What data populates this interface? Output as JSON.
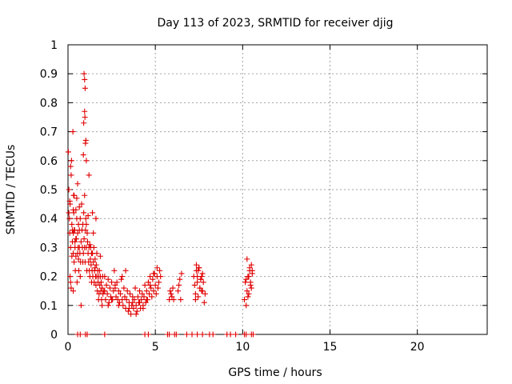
{
  "chart_data": {
    "type": "scatter",
    "title": "Day 113 of 2023, SRMTID for receiver djig",
    "xlabel": "GPS time / hours",
    "ylabel": "SRMTID / TECUs",
    "xlim": [
      0,
      24
    ],
    "ylim": [
      0,
      1
    ],
    "xticks": [
      0,
      5,
      10,
      15,
      20
    ],
    "xtick_labels": [
      "0",
      "5",
      "10",
      "15",
      "20"
    ],
    "yticks": [
      0,
      0.1,
      0.2,
      0.3,
      0.4,
      0.5,
      0.6,
      0.7,
      0.8,
      0.9,
      1
    ],
    "ytick_labels": [
      "0",
      "0.1",
      "0.2",
      "0.3",
      "0.4",
      "0.5",
      "0.6",
      "0.7",
      "0.8",
      "0.9",
      "1"
    ],
    "grid": true,
    "marker": "+",
    "color": "#e00000",
    "series": [
      {
        "name": "SRMTID",
        "x": [
          0.02,
          0.05,
          0.08,
          0.1,
          0.12,
          0.15,
          0.18,
          0.2,
          0.22,
          0.25,
          0.28,
          0.3,
          0.33,
          0.35,
          0.38,
          0.4,
          0.42,
          0.45,
          0.48,
          0.5,
          0.52,
          0.55,
          0.58,
          0.6,
          0.62,
          0.65,
          0.68,
          0.7,
          0.72,
          0.75,
          0.78,
          0.8,
          0.82,
          0.85,
          0.88,
          0.9,
          0.92,
          0.95,
          0.98,
          1.0,
          1.02,
          1.05,
          1.08,
          1.1,
          1.12,
          1.15,
          1.18,
          1.2,
          1.22,
          1.25,
          1.28,
          1.3,
          1.32,
          1.35,
          1.38,
          1.4,
          1.42,
          1.45,
          1.48,
          1.5,
          1.52,
          1.55,
          1.58,
          1.6,
          1.62,
          1.65,
          1.68,
          1.7,
          1.72,
          1.75,
          1.78,
          1.8,
          1.82,
          1.85,
          1.88,
          1.9,
          1.92,
          1.95,
          1.98,
          2.0,
          2.05,
          2.1,
          2.15,
          2.2,
          2.25,
          2.3,
          2.35,
          2.4,
          2.45,
          2.5,
          2.55,
          2.6,
          2.65,
          2.7,
          2.75,
          2.8,
          2.85,
          2.9,
          2.95,
          3.0,
          3.05,
          3.1,
          3.15,
          3.2,
          3.25,
          3.3,
          3.35,
          3.4,
          3.45,
          3.5,
          3.55,
          3.6,
          3.65,
          3.7,
          3.75,
          3.8,
          3.85,
          3.9,
          3.95,
          4.0,
          4.05,
          4.1,
          4.15,
          4.2,
          4.25,
          4.3,
          4.35,
          4.4,
          4.45,
          4.5,
          4.55,
          4.6,
          4.65,
          4.7,
          4.75,
          4.8,
          4.85,
          4.9,
          4.95,
          5.0,
          5.05,
          5.1,
          5.15,
          5.2,
          5.25,
          5.3,
          0.05,
          0.1,
          0.15,
          0.22,
          0.3,
          0.35,
          0.45,
          0.55,
          0.65,
          0.75,
          0.85,
          0.95,
          1.05,
          1.15,
          1.25,
          1.35,
          1.45,
          1.55,
          1.65,
          1.75,
          1.85,
          1.95,
          2.1,
          2.3,
          2.5,
          2.7,
          2.9,
          3.1,
          3.3,
          3.5,
          3.7,
          3.9,
          4.1,
          4.3,
          4.5,
          4.7,
          4.9,
          5.1,
          0.92,
          0.95,
          0.98,
          1.0,
          0.95,
          0.97,
          1.02,
          0.9,
          0.88,
          1.05,
          0.3,
          0.32,
          0.35,
          0.12,
          0.15,
          0.18,
          0.6,
          0.65,
          0.7,
          0.5,
          0.4,
          0.3,
          1.2,
          1.4,
          1.6,
          0.45,
          0.55,
          0.25,
          5.8,
          5.85,
          5.9,
          5.95,
          6.0,
          6.05,
          6.3,
          6.35,
          6.4,
          6.45,
          6.5,
          7.2,
          7.25,
          7.3,
          7.35,
          7.4,
          7.45,
          7.5,
          7.55,
          7.6,
          7.65,
          7.7,
          7.75,
          7.8,
          7.85,
          7.3,
          7.4,
          7.5,
          7.6,
          7.7,
          7.35,
          7.45,
          7.55,
          7.65,
          10.1,
          10.15,
          10.2,
          10.25,
          10.3,
          10.35,
          10.4,
          10.45,
          10.5,
          10.55,
          10.2,
          10.3,
          10.4,
          10.5,
          10.35,
          10.45,
          10.25,
          10.55,
          0.55,
          0.7,
          1.0,
          1.1,
          2.1,
          4.4,
          4.6,
          5.7,
          5.8,
          6.1,
          6.2,
          6.8,
          7.1,
          7.4,
          7.7,
          8.1,
          8.3,
          9.1,
          9.3,
          9.6,
          10.1,
          10.2,
          10.5,
          10.6
        ],
        "y": [
          0.63,
          0.5,
          0.4,
          0.35,
          0.45,
          0.3,
          0.55,
          0.6,
          0.38,
          0.32,
          0.7,
          0.28,
          0.42,
          0.25,
          0.36,
          0.3,
          0.22,
          0.27,
          0.33,
          0.4,
          0.18,
          0.35,
          0.3,
          0.26,
          0.22,
          0.3,
          0.28,
          0.2,
          0.25,
          0.32,
          0.45,
          0.36,
          0.3,
          0.38,
          0.28,
          0.42,
          0.33,
          0.3,
          0.25,
          0.36,
          0.4,
          0.3,
          0.22,
          0.35,
          0.32,
          0.28,
          0.25,
          0.3,
          0.22,
          0.2,
          0.26,
          0.3,
          0.24,
          0.18,
          0.22,
          0.28,
          0.2,
          0.25,
          0.3,
          0.18,
          0.22,
          0.26,
          0.2,
          0.17,
          0.24,
          0.2,
          0.15,
          0.22,
          0.18,
          0.2,
          0.14,
          0.22,
          0.17,
          0.2,
          0.15,
          0.18,
          0.12,
          0.16,
          0.2,
          0.14,
          0.15,
          0.2,
          0.12,
          0.17,
          0.14,
          0.19,
          0.11,
          0.16,
          0.13,
          0.18,
          0.12,
          0.15,
          0.22,
          0.17,
          0.13,
          0.18,
          0.12,
          0.15,
          0.11,
          0.14,
          0.19,
          0.12,
          0.1,
          0.16,
          0.13,
          0.09,
          0.12,
          0.15,
          0.08,
          0.11,
          0.14,
          0.07,
          0.1,
          0.13,
          0.09,
          0.12,
          0.16,
          0.1,
          0.08,
          0.13,
          0.11,
          0.15,
          0.09,
          0.12,
          0.14,
          0.1,
          0.13,
          0.17,
          0.11,
          0.15,
          0.12,
          0.18,
          0.14,
          0.2,
          0.16,
          0.13,
          0.19,
          0.15,
          0.21,
          0.17,
          0.14,
          0.2,
          0.16,
          0.18,
          0.22,
          0.2,
          0.42,
          0.46,
          0.58,
          0.27,
          0.15,
          0.48,
          0.43,
          0.52,
          0.36,
          0.1,
          0.25,
          0.48,
          0.38,
          0.41,
          0.31,
          0.28,
          0.35,
          0.23,
          0.28,
          0.12,
          0.27,
          0.1,
          0.15,
          0.1,
          0.12,
          0.16,
          0.1,
          0.2,
          0.22,
          0.09,
          0.11,
          0.07,
          0.11,
          0.09,
          0.12,
          0.17,
          0.21,
          0.23,
          0.9,
          0.88,
          0.85,
          0.66,
          0.77,
          0.75,
          0.67,
          0.73,
          0.62,
          0.6,
          0.43,
          0.48,
          0.36,
          0.2,
          0.18,
          0.16,
          0.38,
          0.44,
          0.4,
          0.47,
          0.32,
          0.35,
          0.55,
          0.42,
          0.4,
          0.33,
          0.28,
          0.36,
          0.12,
          0.15,
          0.14,
          0.13,
          0.16,
          0.12,
          0.15,
          0.17,
          0.19,
          0.12,
          0.21,
          0.2,
          0.17,
          0.14,
          0.22,
          0.18,
          0.13,
          0.23,
          0.16,
          0.19,
          0.15,
          0.21,
          0.18,
          0.11,
          0.14,
          0.12,
          0.2,
          0.23,
          0.19,
          0.15,
          0.24,
          0.22,
          0.16,
          0.2,
          0.12,
          0.18,
          0.1,
          0.15,
          0.2,
          0.14,
          0.22,
          0.17,
          0.24,
          0.21,
          0.19,
          0.13,
          0.23,
          0.16,
          0.2,
          0.18,
          0.26,
          0.22,
          0,
          0,
          0,
          0,
          0,
          0,
          0,
          0,
          0,
          0,
          0,
          0,
          0,
          0,
          0,
          0,
          0,
          0,
          0,
          0,
          0,
          0,
          0,
          0
        ]
      }
    ]
  }
}
